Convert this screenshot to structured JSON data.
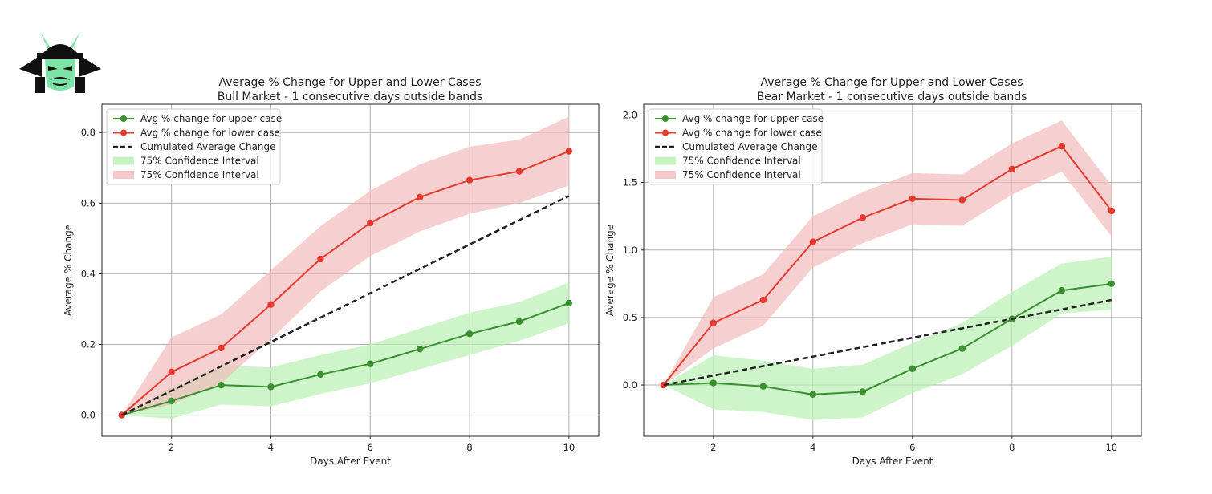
{
  "colors": {
    "upper": "#3a8f2f",
    "lower": "#e53a2e",
    "upper_band": "#b9f0b3",
    "lower_band": "#f2bcbc",
    "cumulated": "#222222",
    "grid": "#b0b0b0"
  },
  "logo": {
    "icon": "samurai-helmet-icon"
  },
  "chart_data": [
    {
      "type": "line",
      "title": "Average % Change for Upper and Lower Cases",
      "subtitle": "Bull Market - 1 consecutive days outside bands",
      "xlabel": "Days After Event",
      "ylabel": "Average % Change",
      "xlim": [
        0.6,
        10.6
      ],
      "ylim": [
        -0.06,
        0.88
      ],
      "xticks": [
        2,
        4,
        6,
        8,
        10
      ],
      "yticks": [
        0.0,
        0.2,
        0.4,
        0.6,
        0.8
      ],
      "ytick_labels": [
        "0.0",
        "0.2",
        "0.4",
        "0.6",
        "0.8"
      ],
      "grid": true,
      "legend_position": "top-left",
      "legend": [
        "Avg % change for upper case",
        "Avg % change for lower case",
        "Cumulated Average Change",
        "75% Confidence Interval",
        "75% Confidence Interval"
      ],
      "x": [
        1,
        2,
        3,
        4,
        5,
        6,
        7,
        8,
        9,
        10
      ],
      "series": [
        {
          "name": "Avg % change for upper case",
          "values": [
            0.0,
            0.04,
            0.085,
            0.08,
            0.115,
            0.145,
            0.187,
            0.23,
            0.265,
            0.317
          ]
        },
        {
          "name": "Avg % change for lower case",
          "values": [
            0.0,
            0.122,
            0.19,
            0.313,
            0.442,
            0.544,
            0.617,
            0.665,
            0.69,
            0.747
          ]
        },
        {
          "name": "Cumulated Average Change",
          "values": [
            0.0,
            0.069,
            0.138,
            0.207,
            0.276,
            0.345,
            0.414,
            0.483,
            0.552,
            0.62
          ]
        }
      ],
      "bands": [
        {
          "name": "75% Confidence Interval",
          "lower": [
            0.0,
            -0.01,
            0.03,
            0.025,
            0.06,
            0.09,
            0.13,
            0.17,
            0.21,
            0.26
          ],
          "upper": [
            0.0,
            0.08,
            0.14,
            0.135,
            0.17,
            0.2,
            0.245,
            0.29,
            0.32,
            0.375
          ]
        },
        {
          "name": "75% Confidence Interval",
          "lower": [
            0.0,
            0.03,
            0.09,
            0.215,
            0.35,
            0.45,
            0.52,
            0.57,
            0.6,
            0.65
          ],
          "upper": [
            0.0,
            0.22,
            0.285,
            0.41,
            0.535,
            0.635,
            0.71,
            0.76,
            0.78,
            0.845
          ]
        }
      ]
    },
    {
      "type": "line",
      "title": "Average % Change for Upper and Lower Cases",
      "subtitle": "Bear Market - 1 consecutive days outside bands",
      "xlabel": "Days After Event",
      "ylabel": "Average % Change",
      "xlim": [
        0.6,
        10.6
      ],
      "ylim": [
        -0.38,
        2.08
      ],
      "xticks": [
        2,
        4,
        6,
        8,
        10
      ],
      "yticks": [
        0.0,
        0.5,
        1.0,
        1.5,
        2.0
      ],
      "ytick_labels": [
        "0.0",
        "0.5",
        "1.0",
        "1.5",
        "2.0"
      ],
      "grid": true,
      "legend_position": "top-left",
      "legend": [
        "Avg % change for upper case",
        "Avg % change for lower case",
        "Cumulated Average Change",
        "75% Confidence Interval",
        "75% Confidence Interval"
      ],
      "x": [
        1,
        2,
        3,
        4,
        5,
        6,
        7,
        8,
        9,
        10
      ],
      "series": [
        {
          "name": "Avg % change for upper case",
          "values": [
            0.0,
            0.015,
            -0.01,
            -0.07,
            -0.05,
            0.12,
            0.27,
            0.49,
            0.7,
            0.75
          ]
        },
        {
          "name": "Avg % change for lower case",
          "values": [
            0.0,
            0.46,
            0.63,
            1.06,
            1.24,
            1.38,
            1.37,
            1.6,
            1.77,
            1.29
          ]
        },
        {
          "name": "Cumulated Average Change",
          "values": [
            0.0,
            0.07,
            0.14,
            0.21,
            0.28,
            0.35,
            0.42,
            0.49,
            0.56,
            0.63
          ]
        }
      ],
      "bands": [
        {
          "name": "75% Confidence Interval",
          "lower": [
            0.0,
            -0.18,
            -0.2,
            -0.26,
            -0.24,
            -0.06,
            0.08,
            0.29,
            0.53,
            0.56
          ],
          "upper": [
            0.0,
            0.22,
            0.18,
            0.12,
            0.15,
            0.31,
            0.46,
            0.69,
            0.9,
            0.95
          ]
        },
        {
          "name": "75% Confidence Interval",
          "lower": [
            0.0,
            0.27,
            0.44,
            0.87,
            1.05,
            1.19,
            1.18,
            1.41,
            1.58,
            1.1
          ]
        },
        {
          "name": "75% Confidence Interval",
          "upper": [
            0.0,
            0.65,
            0.82,
            1.25,
            1.43,
            1.57,
            1.56,
            1.79,
            1.96,
            1.48
          ]
        }
      ]
    }
  ]
}
